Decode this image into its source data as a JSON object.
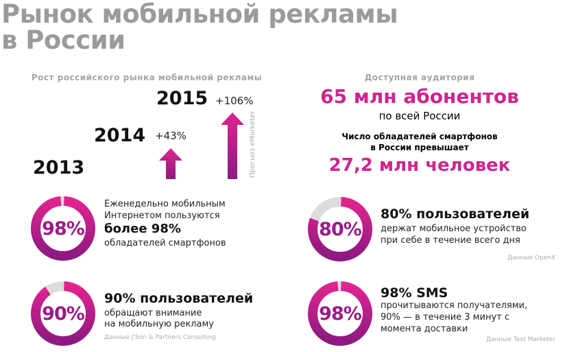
{
  "title": {
    "line1": "Рынок мобильной рекламы",
    "line2": "в России"
  },
  "growth": {
    "subtitle": "Рост российского рынка мобильной рекламы",
    "years": [
      "2013",
      "2014",
      "2015"
    ],
    "increase_2014": "+43%",
    "increase_2015": "+106%",
    "source": "Прогноз eMarketer"
  },
  "audience": {
    "subtitle": "Доступная аудитория",
    "subscribers": "65 млн абонентов",
    "subscribers_note": "по всей России",
    "smartphone_line1": "Число обладателей смартфонов",
    "smartphone_line2": "в России превышает",
    "smartphone_value": "27,2 млн человек"
  },
  "colors": {
    "accent": "#d0248f",
    "accent_dark": "#8c1a80",
    "track": "#dcdcdc",
    "title": "#9b9b9b"
  },
  "stats": [
    {
      "percent": 98,
      "label": "98%",
      "line1": "Еженедельно мобильным",
      "line2": "Интернетом пользуются",
      "bold": "более 98%",
      "line3": "обладателей смартфонов"
    },
    {
      "percent": 90,
      "label": "90%",
      "bold": "90% пользователей",
      "line1": "обращают внимание",
      "line2": "на мобильную рекламу",
      "source": "Данные J'Son & Partners Consulting"
    },
    {
      "percent": 80,
      "label": "80%",
      "bold": "80% пользователей",
      "line1": "держат мобильное устройство",
      "line2": "при себе в течение всего дня",
      "source": "Данные OpenX"
    },
    {
      "percent": 98,
      "label": "98%",
      "bold": "98% SMS",
      "line1": "прочитываются получателями,",
      "line2": "90% — в течение 3 минут с",
      "line3": "момента доставки",
      "source": "Данные Text Marketer"
    }
  ]
}
